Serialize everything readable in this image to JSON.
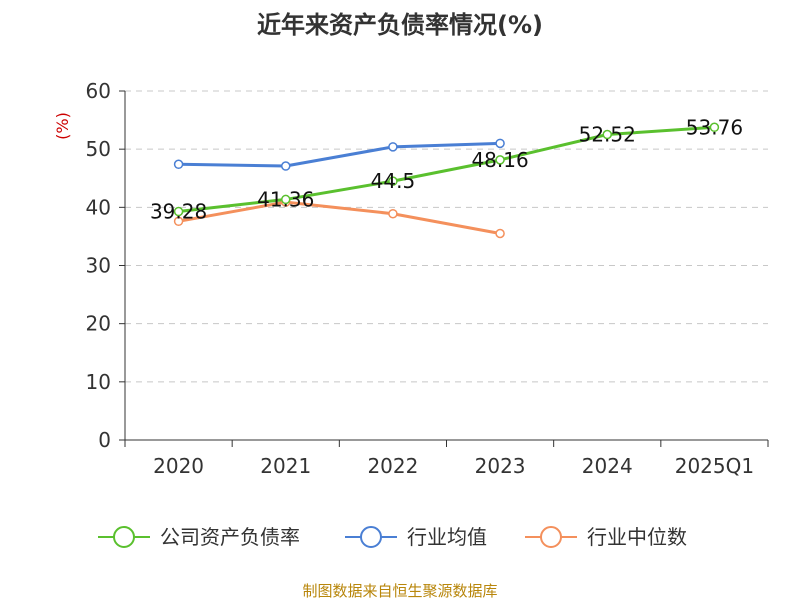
{
  "chart_data": {
    "type": "line",
    "title": "近年来资产负债率情况(%)",
    "ylabel": "(%)",
    "categories": [
      "2020",
      "2021",
      "2022",
      "2023",
      "2024",
      "2025Q1"
    ],
    "ylim": [
      0,
      60
    ],
    "yticks": [
      0,
      10,
      20,
      30,
      40,
      50,
      60
    ],
    "grid": true,
    "legend_position": "bottom",
    "series": [
      {
        "name": "公司资产负债率",
        "color": "#5ac02e",
        "values": [
          39.28,
          41.36,
          44.5,
          48.16,
          52.52,
          53.76
        ],
        "labels": [
          "39.28",
          "41.36",
          "44.5",
          "48.16",
          "52.52",
          "53.76"
        ]
      },
      {
        "name": "行业均值",
        "color": "#4a7fd4",
        "values": [
          47.4,
          47.1,
          50.4,
          51.0,
          null,
          null
        ]
      },
      {
        "name": "行业中位数",
        "color": "#f4905c",
        "values": [
          37.6,
          40.9,
          38.9,
          35.5,
          null,
          null
        ]
      }
    ],
    "source": "制图数据来自恒生聚源数据库"
  }
}
